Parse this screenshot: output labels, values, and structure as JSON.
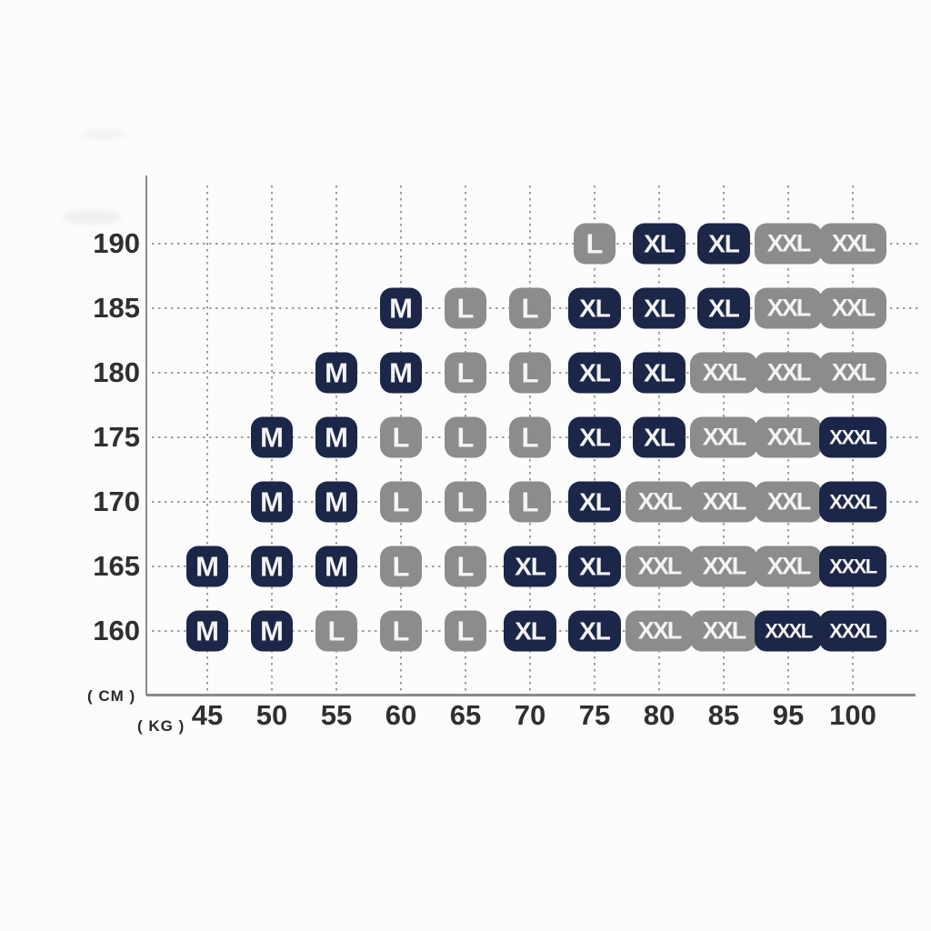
{
  "colors": {
    "navy": "#1c2649",
    "gray": "#8c8c8c",
    "axis_line": "#8a8a8a",
    "grid_dot": "#9e9e9e",
    "tick_text": "#2f2f2f",
    "badge_text": "#f4f4f4",
    "background": "#fcfcfc"
  },
  "chart_data": {
    "type": "scatter",
    "title": "",
    "xlabel": "( KG )",
    "ylabel": "( CM )",
    "grid": "dotted",
    "legend_position": "none",
    "x_ticks": [
      "45",
      "50",
      "55",
      "60",
      "65",
      "70",
      "75",
      "80",
      "85",
      "95",
      "100"
    ],
    "y_ticks": [
      "190",
      "185",
      "180",
      "175",
      "170",
      "165",
      "160"
    ],
    "rows": [
      {
        "height": "190",
        "cells": [
          {
            "kg": "75",
            "size": "L",
            "variant": "gray"
          },
          {
            "kg": "80",
            "size": "XL",
            "variant": "navy"
          },
          {
            "kg": "85",
            "size": "XL",
            "variant": "navy"
          },
          {
            "kg": "95",
            "size": "XXL",
            "variant": "gray"
          },
          {
            "kg": "100",
            "size": "XXL",
            "variant": "gray"
          }
        ]
      },
      {
        "height": "185",
        "cells": [
          {
            "kg": "60",
            "size": "M",
            "variant": "navy"
          },
          {
            "kg": "65",
            "size": "L",
            "variant": "gray"
          },
          {
            "kg": "70",
            "size": "L",
            "variant": "gray"
          },
          {
            "kg": "75",
            "size": "XL",
            "variant": "navy"
          },
          {
            "kg": "80",
            "size": "XL",
            "variant": "navy"
          },
          {
            "kg": "85",
            "size": "XL",
            "variant": "navy"
          },
          {
            "kg": "95",
            "size": "XXL",
            "variant": "gray"
          },
          {
            "kg": "100",
            "size": "XXL",
            "variant": "gray"
          }
        ]
      },
      {
        "height": "180",
        "cells": [
          {
            "kg": "55",
            "size": "M",
            "variant": "navy"
          },
          {
            "kg": "60",
            "size": "M",
            "variant": "navy"
          },
          {
            "kg": "65",
            "size": "L",
            "variant": "gray"
          },
          {
            "kg": "70",
            "size": "L",
            "variant": "gray"
          },
          {
            "kg": "75",
            "size": "XL",
            "variant": "navy"
          },
          {
            "kg": "80",
            "size": "XL",
            "variant": "navy"
          },
          {
            "kg": "85",
            "size": "XXL",
            "variant": "gray"
          },
          {
            "kg": "95",
            "size": "XXL",
            "variant": "gray"
          },
          {
            "kg": "100",
            "size": "XXL",
            "variant": "gray"
          }
        ]
      },
      {
        "height": "175",
        "cells": [
          {
            "kg": "50",
            "size": "M",
            "variant": "navy"
          },
          {
            "kg": "55",
            "size": "M",
            "variant": "navy"
          },
          {
            "kg": "60",
            "size": "L",
            "variant": "gray"
          },
          {
            "kg": "65",
            "size": "L",
            "variant": "gray"
          },
          {
            "kg": "70",
            "size": "L",
            "variant": "gray"
          },
          {
            "kg": "75",
            "size": "XL",
            "variant": "navy"
          },
          {
            "kg": "80",
            "size": "XL",
            "variant": "navy"
          },
          {
            "kg": "85",
            "size": "XXL",
            "variant": "gray"
          },
          {
            "kg": "95",
            "size": "XXL",
            "variant": "gray"
          },
          {
            "kg": "100",
            "size": "XXXL",
            "variant": "navy"
          }
        ]
      },
      {
        "height": "170",
        "cells": [
          {
            "kg": "50",
            "size": "M",
            "variant": "navy"
          },
          {
            "kg": "55",
            "size": "M",
            "variant": "navy"
          },
          {
            "kg": "60",
            "size": "L",
            "variant": "gray"
          },
          {
            "kg": "65",
            "size": "L",
            "variant": "gray"
          },
          {
            "kg": "70",
            "size": "L",
            "variant": "gray"
          },
          {
            "kg": "75",
            "size": "XL",
            "variant": "navy"
          },
          {
            "kg": "80",
            "size": "XXL",
            "variant": "gray"
          },
          {
            "kg": "85",
            "size": "XXL",
            "variant": "gray"
          },
          {
            "kg": "95",
            "size": "XXL",
            "variant": "gray"
          },
          {
            "kg": "100",
            "size": "XXXL",
            "variant": "navy"
          }
        ]
      },
      {
        "height": "165",
        "cells": [
          {
            "kg": "45",
            "size": "M",
            "variant": "navy"
          },
          {
            "kg": "50",
            "size": "M",
            "variant": "navy"
          },
          {
            "kg": "55",
            "size": "M",
            "variant": "navy"
          },
          {
            "kg": "60",
            "size": "L",
            "variant": "gray"
          },
          {
            "kg": "65",
            "size": "L",
            "variant": "gray"
          },
          {
            "kg": "70",
            "size": "XL",
            "variant": "navy"
          },
          {
            "kg": "75",
            "size": "XL",
            "variant": "navy"
          },
          {
            "kg": "80",
            "size": "XXL",
            "variant": "gray"
          },
          {
            "kg": "85",
            "size": "XXL",
            "variant": "gray"
          },
          {
            "kg": "95",
            "size": "XXL",
            "variant": "gray"
          },
          {
            "kg": "100",
            "size": "XXXL",
            "variant": "navy"
          }
        ]
      },
      {
        "height": "160",
        "cells": [
          {
            "kg": "45",
            "size": "M",
            "variant": "navy"
          },
          {
            "kg": "50",
            "size": "M",
            "variant": "navy"
          },
          {
            "kg": "55",
            "size": "L",
            "variant": "gray"
          },
          {
            "kg": "60",
            "size": "L",
            "variant": "gray"
          },
          {
            "kg": "65",
            "size": "L",
            "variant": "gray"
          },
          {
            "kg": "70",
            "size": "XL",
            "variant": "navy"
          },
          {
            "kg": "75",
            "size": "XL",
            "variant": "navy"
          },
          {
            "kg": "80",
            "size": "XXL",
            "variant": "gray"
          },
          {
            "kg": "85",
            "size": "XXL",
            "variant": "gray"
          },
          {
            "kg": "95",
            "size": "XXXL",
            "variant": "navy"
          },
          {
            "kg": "100",
            "size": "XXXL",
            "variant": "navy"
          }
        ]
      }
    ]
  }
}
